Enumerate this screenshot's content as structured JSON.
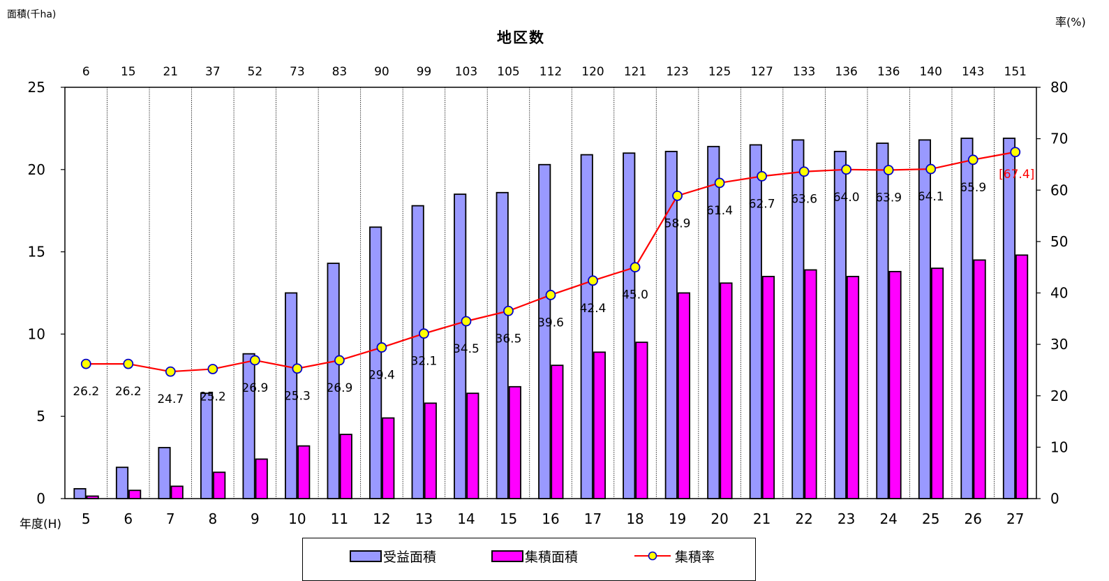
{
  "chart_data": {
    "type": "bar",
    "title": "地区数",
    "y_left_label": "面積(千ha)",
    "y_right_label": "率(%)",
    "x_label": "年度(H)",
    "y_left_lim": [
      0,
      25
    ],
    "y_left_ticks": [
      "0",
      "5",
      "10",
      "15",
      "20",
      "25"
    ],
    "y_right_lim": [
      0,
      80
    ],
    "y_right_ticks": [
      "0",
      "10",
      "20",
      "30",
      "40",
      "50",
      "60",
      "70",
      "80"
    ],
    "categories": [
      "5",
      "6",
      "7",
      "8",
      "9",
      "10",
      "11",
      "12",
      "13",
      "14",
      "15",
      "16",
      "17",
      "18",
      "19",
      "20",
      "21",
      "22",
      "23",
      "24",
      "25",
      "26",
      "27"
    ],
    "district_counts": [
      "6",
      "15",
      "21",
      "37",
      "52",
      "73",
      "83",
      "90",
      "99",
      "103",
      "105",
      "112",
      "120",
      "121",
      "123",
      "125",
      "127",
      "133",
      "136",
      "136",
      "140",
      "143",
      "151"
    ],
    "series": [
      {
        "name": "受益面積",
        "type": "bar",
        "axis": "left",
        "color": "#9999ff",
        "values": [
          0.6,
          1.9,
          3.1,
          6.4,
          8.8,
          12.5,
          14.3,
          16.5,
          17.8,
          18.5,
          18.6,
          20.3,
          20.9,
          21.0,
          21.1,
          21.4,
          21.5,
          21.8,
          21.1,
          21.6,
          21.8,
          21.9,
          21.9
        ]
      },
      {
        "name": "集積面積",
        "type": "bar",
        "axis": "left",
        "color": "#ff00ff",
        "values": [
          0.15,
          0.5,
          0.75,
          1.6,
          2.4,
          3.2,
          3.9,
          4.9,
          5.8,
          6.4,
          6.8,
          8.1,
          8.9,
          9.5,
          12.5,
          13.1,
          13.5,
          13.9,
          13.5,
          13.8,
          14.0,
          14.5,
          14.8
        ]
      },
      {
        "name": "集積率",
        "type": "line",
        "axis": "right",
        "color": "#ff0000",
        "marker_color": "#ffff00",
        "values": [
          26.2,
          26.2,
          24.7,
          25.2,
          26.9,
          25.3,
          26.9,
          29.4,
          32.1,
          34.5,
          36.5,
          39.6,
          42.4,
          45.0,
          58.9,
          61.4,
          62.7,
          63.6,
          64.0,
          63.9,
          64.1,
          65.9,
          67.4
        ],
        "labels": [
          "26.2",
          "26.2",
          "24.7",
          "25.2",
          "26.9",
          "25.3",
          "26.9",
          "29.4",
          "32.1",
          "34.5",
          "36.5",
          "39.6",
          "42.4",
          "45.0",
          "58.9",
          "61.4",
          "62.7",
          "63.6",
          "64.0",
          "63.9",
          "64.1",
          "65.9",
          "[67.4]"
        ]
      }
    ],
    "grid": "vertical dotted",
    "legend_position": "bottom"
  }
}
